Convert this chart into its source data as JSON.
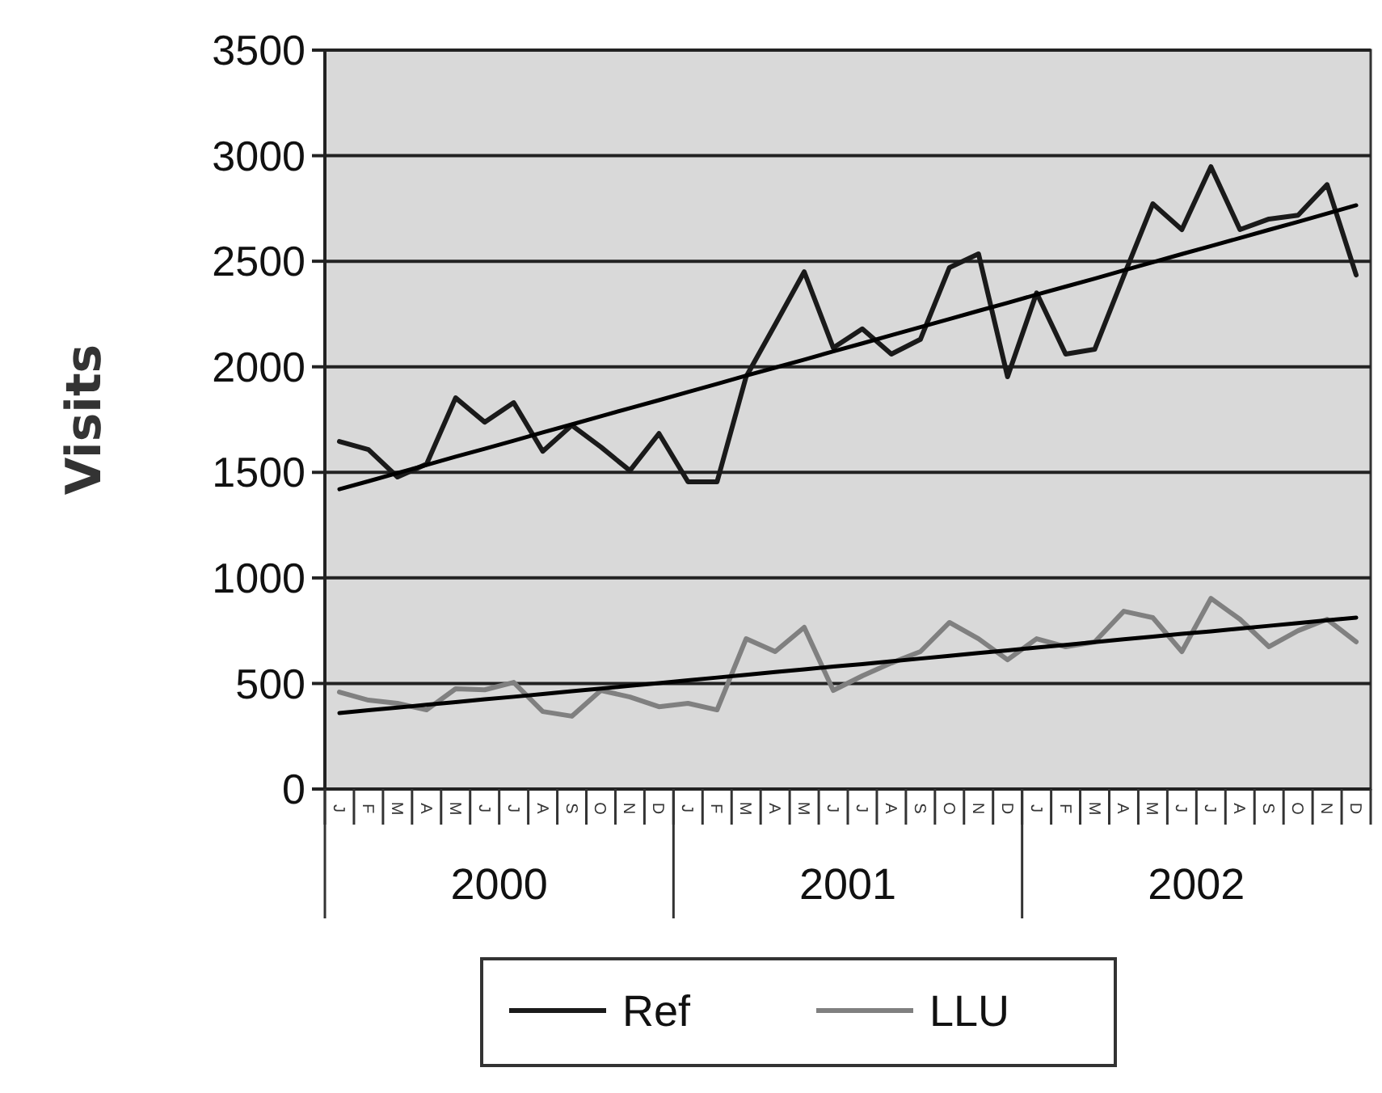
{
  "chart_data": {
    "type": "line",
    "ylabel": "Visits",
    "categories": [
      "J",
      "F",
      "M",
      "A",
      "M",
      "J",
      "J",
      "A",
      "S",
      "O",
      "N",
      "D",
      "J",
      "F",
      "M",
      "A",
      "M",
      "J",
      "J",
      "A",
      "S",
      "O",
      "N",
      "D",
      "J",
      "F",
      "M",
      "A",
      "M",
      "J",
      "J",
      "A",
      "S",
      "O",
      "N",
      "D"
    ],
    "series": [
      {
        "name": "Ref",
        "color": "#1a1a1a",
        "values": [
          1646,
          1608,
          1478,
          1539,
          1853,
          1738,
          1830,
          1600,
          1723,
          1620,
          1508,
          1684,
          1455,
          1455,
          1953,
          2200,
          2450,
          2090,
          2180,
          2060,
          2130,
          2470,
          2535,
          1953,
          2350,
          2060,
          2083,
          2430,
          2772,
          2650,
          2948,
          2650,
          2700,
          2718,
          2863,
          2435
        ]
      },
      {
        "name": "LLU",
        "color": "#808080",
        "values": [
          459,
          421,
          406,
          375,
          475,
          470,
          505,
          367,
          345,
          467,
          436,
          390,
          406,
          375,
          712,
          651,
          766,
          467,
          536,
          597,
          651,
          789,
          712,
          612,
          712,
          674,
          697,
          842,
          812,
          651,
          903,
          804,
          674,
          750,
          804,
          697
        ]
      },
      {
        "color": "#000000",
        "values": [
          1420,
          1458,
          1497,
          1535,
          1574,
          1612,
          1650,
          1689,
          1727,
          1766,
          1804,
          1842,
          1881,
          1919,
          1958,
          1996,
          2034,
          2073,
          2111,
          2150,
          2188,
          2226,
          2265,
          2303,
          2342,
          2380,
          2418,
          2457,
          2495,
          2534,
          2572,
          2610,
          2649,
          2687,
          2726,
          2765
        ]
      },
      {
        "color": "#000000",
        "values": [
          360,
          373,
          386,
          399,
          412,
          425,
          437,
          450,
          463,
          476,
          489,
          502,
          515,
          528,
          541,
          554,
          567,
          580,
          592,
          605,
          618,
          631,
          644,
          657,
          670,
          683,
          696,
          709,
          722,
          735,
          747,
          760,
          773,
          786,
          799,
          812
        ]
      }
    ],
    "ylim": [
      0,
      3500
    ],
    "yticks": [
      0,
      500,
      1000,
      1500,
      2000,
      2500,
      3000,
      3500
    ],
    "grid": "y",
    "legend": "bottom",
    "marker": "none",
    "annotations": [
      "2000",
      "2001",
      "2002"
    ]
  }
}
